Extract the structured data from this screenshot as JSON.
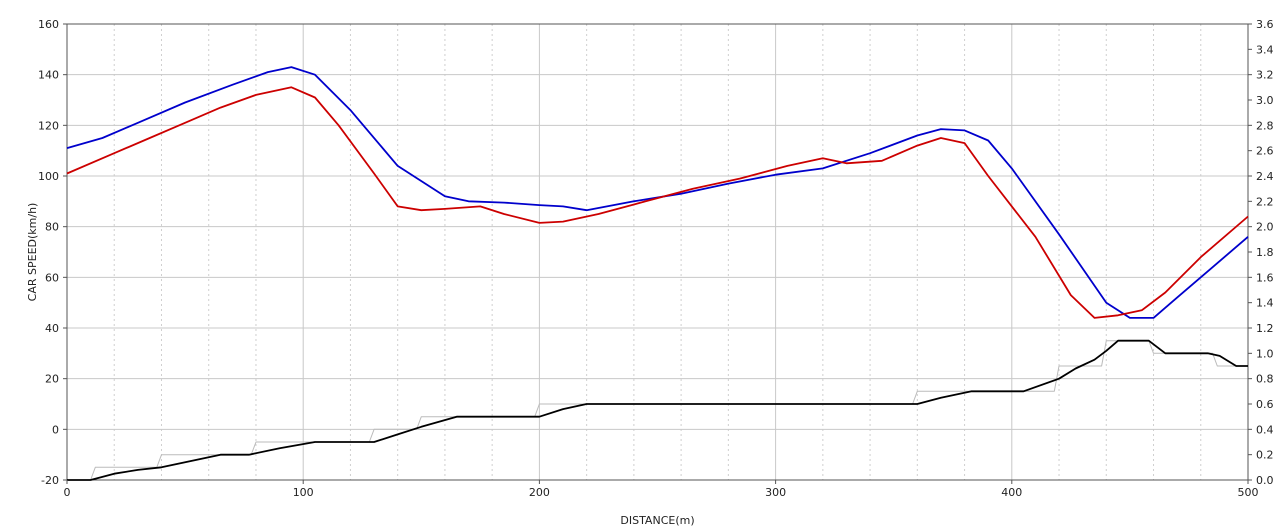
{
  "chart_data": {
    "type": "line",
    "xlabel": "DISTANCE(m)",
    "ylabel": "CAR SPEED(km/h)",
    "x_range": [
      0,
      500
    ],
    "y_left_range": [
      -20,
      160
    ],
    "y_right_range": [
      0.0,
      3.6
    ],
    "x_ticks": [
      "0",
      "100",
      "200",
      "300",
      "400",
      "500"
    ],
    "y_left_ticks": [
      "-20",
      "0",
      "20",
      "40",
      "60",
      "80",
      "100",
      "120",
      "140",
      "160"
    ],
    "y_right_ticks": [
      "0.0",
      "0.2",
      "0.4",
      "0.6",
      "0.8",
      "1.0",
      "1.2",
      "1.4",
      "1.6",
      "1.8",
      "2.0",
      "2.2",
      "2.4",
      "2.6",
      "2.8",
      "3.0",
      "3.2",
      "3.4",
      "3.6"
    ],
    "grid": true,
    "series": [
      {
        "color": "#0000cc",
        "axis": "left",
        "x": [
          0,
          15,
          30,
          50,
          70,
          85,
          95,
          105,
          120,
          140,
          160,
          170,
          185,
          200,
          210,
          220,
          240,
          260,
          280,
          300,
          320,
          340,
          360,
          370,
          380,
          390,
          400,
          420,
          440,
          450,
          460,
          470,
          485,
          500
        ],
        "y": [
          111,
          115,
          121,
          129,
          136,
          141,
          143,
          140,
          126,
          104,
          92,
          90,
          89.5,
          88.5,
          88,
          86.5,
          90,
          93,
          97,
          100.5,
          103,
          109,
          116,
          118.5,
          118,
          114,
          103,
          77,
          50,
          44,
          44,
          52,
          64,
          76
        ]
      },
      {
        "color": "#cc0000",
        "axis": "left",
        "x": [
          0,
          20,
          35,
          50,
          65,
          80,
          95,
          105,
          115,
          130,
          140,
          150,
          160,
          175,
          185,
          200,
          210,
          225,
          245,
          265,
          285,
          305,
          320,
          330,
          345,
          360,
          370,
          380,
          390,
          410,
          425,
          435,
          445,
          455,
          465,
          480,
          500
        ],
        "y": [
          101,
          109,
          115,
          121,
          127,
          132,
          135,
          131,
          120,
          101,
          88,
          86.5,
          87,
          88,
          85,
          81.5,
          82,
          85,
          90,
          95,
          99,
          104,
          107,
          105,
          106,
          112,
          115,
          113,
          100,
          76,
          53,
          44,
          45,
          47,
          54,
          68,
          84
        ]
      },
      {
        "color": "#000000",
        "axis": "right",
        "x": [
          0,
          10,
          20,
          30,
          40,
          50,
          65,
          77,
          90,
          105,
          130,
          140,
          150,
          165,
          185,
          200,
          210,
          220,
          250,
          300,
          360,
          370,
          383,
          400,
          405,
          420,
          427,
          435,
          440,
          445,
          458,
          465,
          483,
          488,
          495,
          500
        ],
        "y": [
          0.0,
          0.0,
          0.05,
          0.08,
          0.1,
          0.14,
          0.2,
          0.2,
          0.25,
          0.3,
          0.3,
          0.36,
          0.42,
          0.5,
          0.5,
          0.5,
          0.56,
          0.6,
          0.6,
          0.6,
          0.6,
          0.65,
          0.7,
          0.7,
          0.7,
          0.8,
          0.88,
          0.95,
          1.02,
          1.1,
          1.1,
          1.0,
          1.0,
          0.98,
          0.9,
          0.9
        ]
      },
      {
        "color": "#bbbbbb",
        "axis": "right",
        "x": [
          0,
          10,
          12,
          38,
          40,
          78,
          80,
          128,
          130,
          148,
          150,
          198,
          200,
          358,
          360,
          418,
          420,
          438,
          440,
          458,
          460,
          485,
          487,
          500
        ],
        "y": [
          0.0,
          0.0,
          0.1,
          0.1,
          0.2,
          0.2,
          0.3,
          0.3,
          0.4,
          0.4,
          0.5,
          0.5,
          0.6,
          0.6,
          0.7,
          0.7,
          0.9,
          0.9,
          1.1,
          1.1,
          1.0,
          1.0,
          0.9,
          0.9
        ]
      }
    ]
  }
}
